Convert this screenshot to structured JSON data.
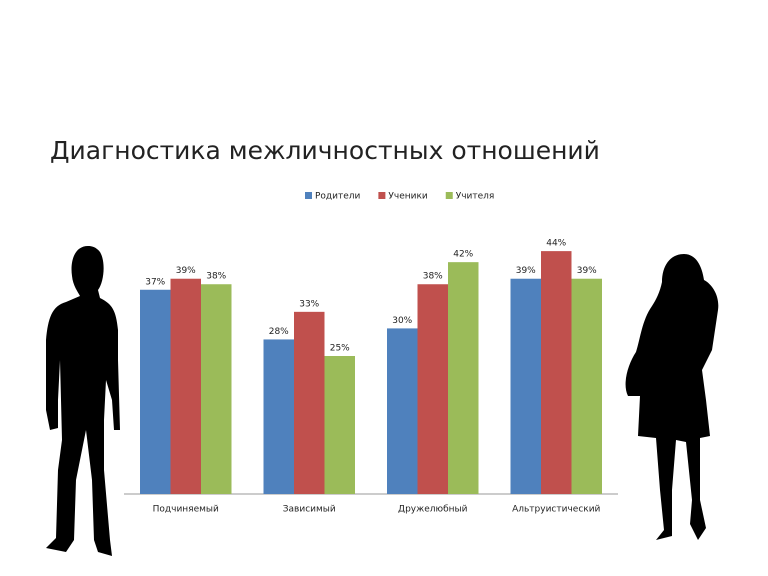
{
  "chart_data": {
    "type": "bar",
    "title": "Диагностика межличностных отношений",
    "categories": [
      "Подчиняемый",
      "Зависимый",
      "Дружелюбный",
      "Альтруистический"
    ],
    "series": [
      {
        "name": "Родители",
        "color": "#4f81bd",
        "values": [
          37,
          28,
          30,
          39
        ],
        "value_labels": [
          "37%",
          "28%",
          "30%",
          "39%"
        ]
      },
      {
        "name": "Ученики",
        "color": "#c0504d",
        "values": [
          39,
          33,
          38,
          44
        ],
        "value_labels": [
          "39%",
          "33%",
          "38%",
          "44%"
        ]
      },
      {
        "name": "Учителя",
        "color": "#9bbb59",
        "values": [
          38,
          25,
          42,
          39
        ],
        "value_labels": [
          "38%",
          "25%",
          "42%",
          "39%"
        ]
      }
    ],
    "ylim": [
      0,
      50
    ],
    "legend": "top"
  }
}
